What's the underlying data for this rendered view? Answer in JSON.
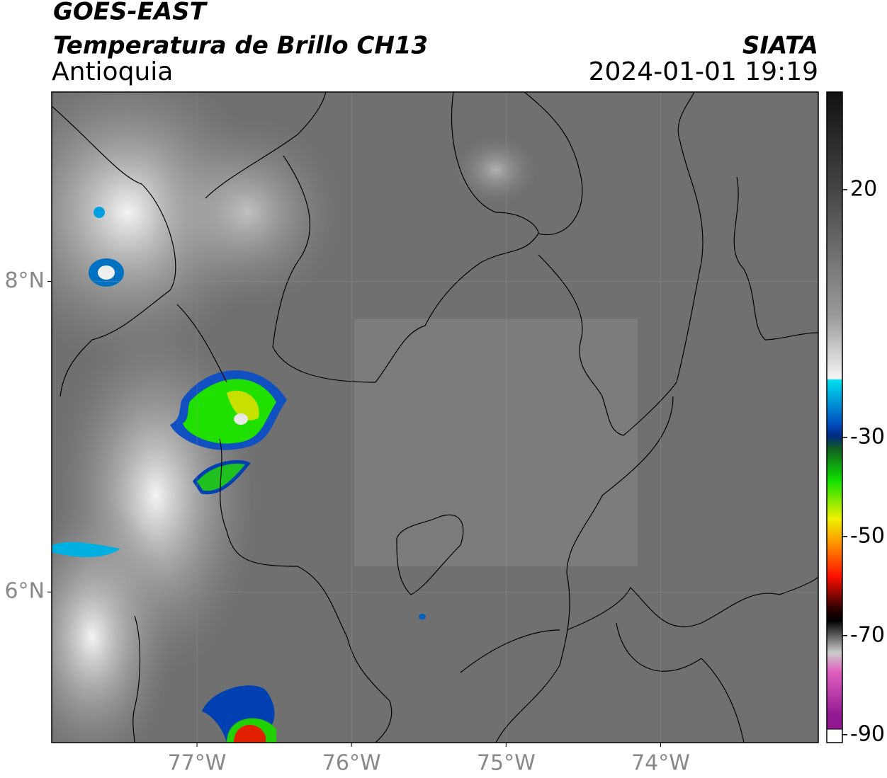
{
  "header": {
    "title": "GOES-EAST",
    "subtitle": "Temperatura de Brillo CH13",
    "region": "Antioquia",
    "agency": "SIATA",
    "datetime": "2024-01-01 19:19"
  },
  "map": {
    "lonlim": [
      -77.94,
      -72.98
    ],
    "latlim": [
      5.03,
      9.22
    ],
    "lon_ticks": [
      {
        "value": -77,
        "label": "77°W"
      },
      {
        "value": -76,
        "label": "76°W"
      },
      {
        "value": -75,
        "label": "75°W"
      },
      {
        "value": -74,
        "label": "74°W"
      }
    ],
    "lat_ticks": [
      {
        "value": 8,
        "label": "8°N"
      },
      {
        "value": 6,
        "label": "6°N"
      }
    ],
    "grid": true
  },
  "colorbar": {
    "lim": [
      -91.6,
      39.7
    ],
    "ticks": [
      20,
      -30,
      -50,
      -70,
      -90
    ]
  }
}
